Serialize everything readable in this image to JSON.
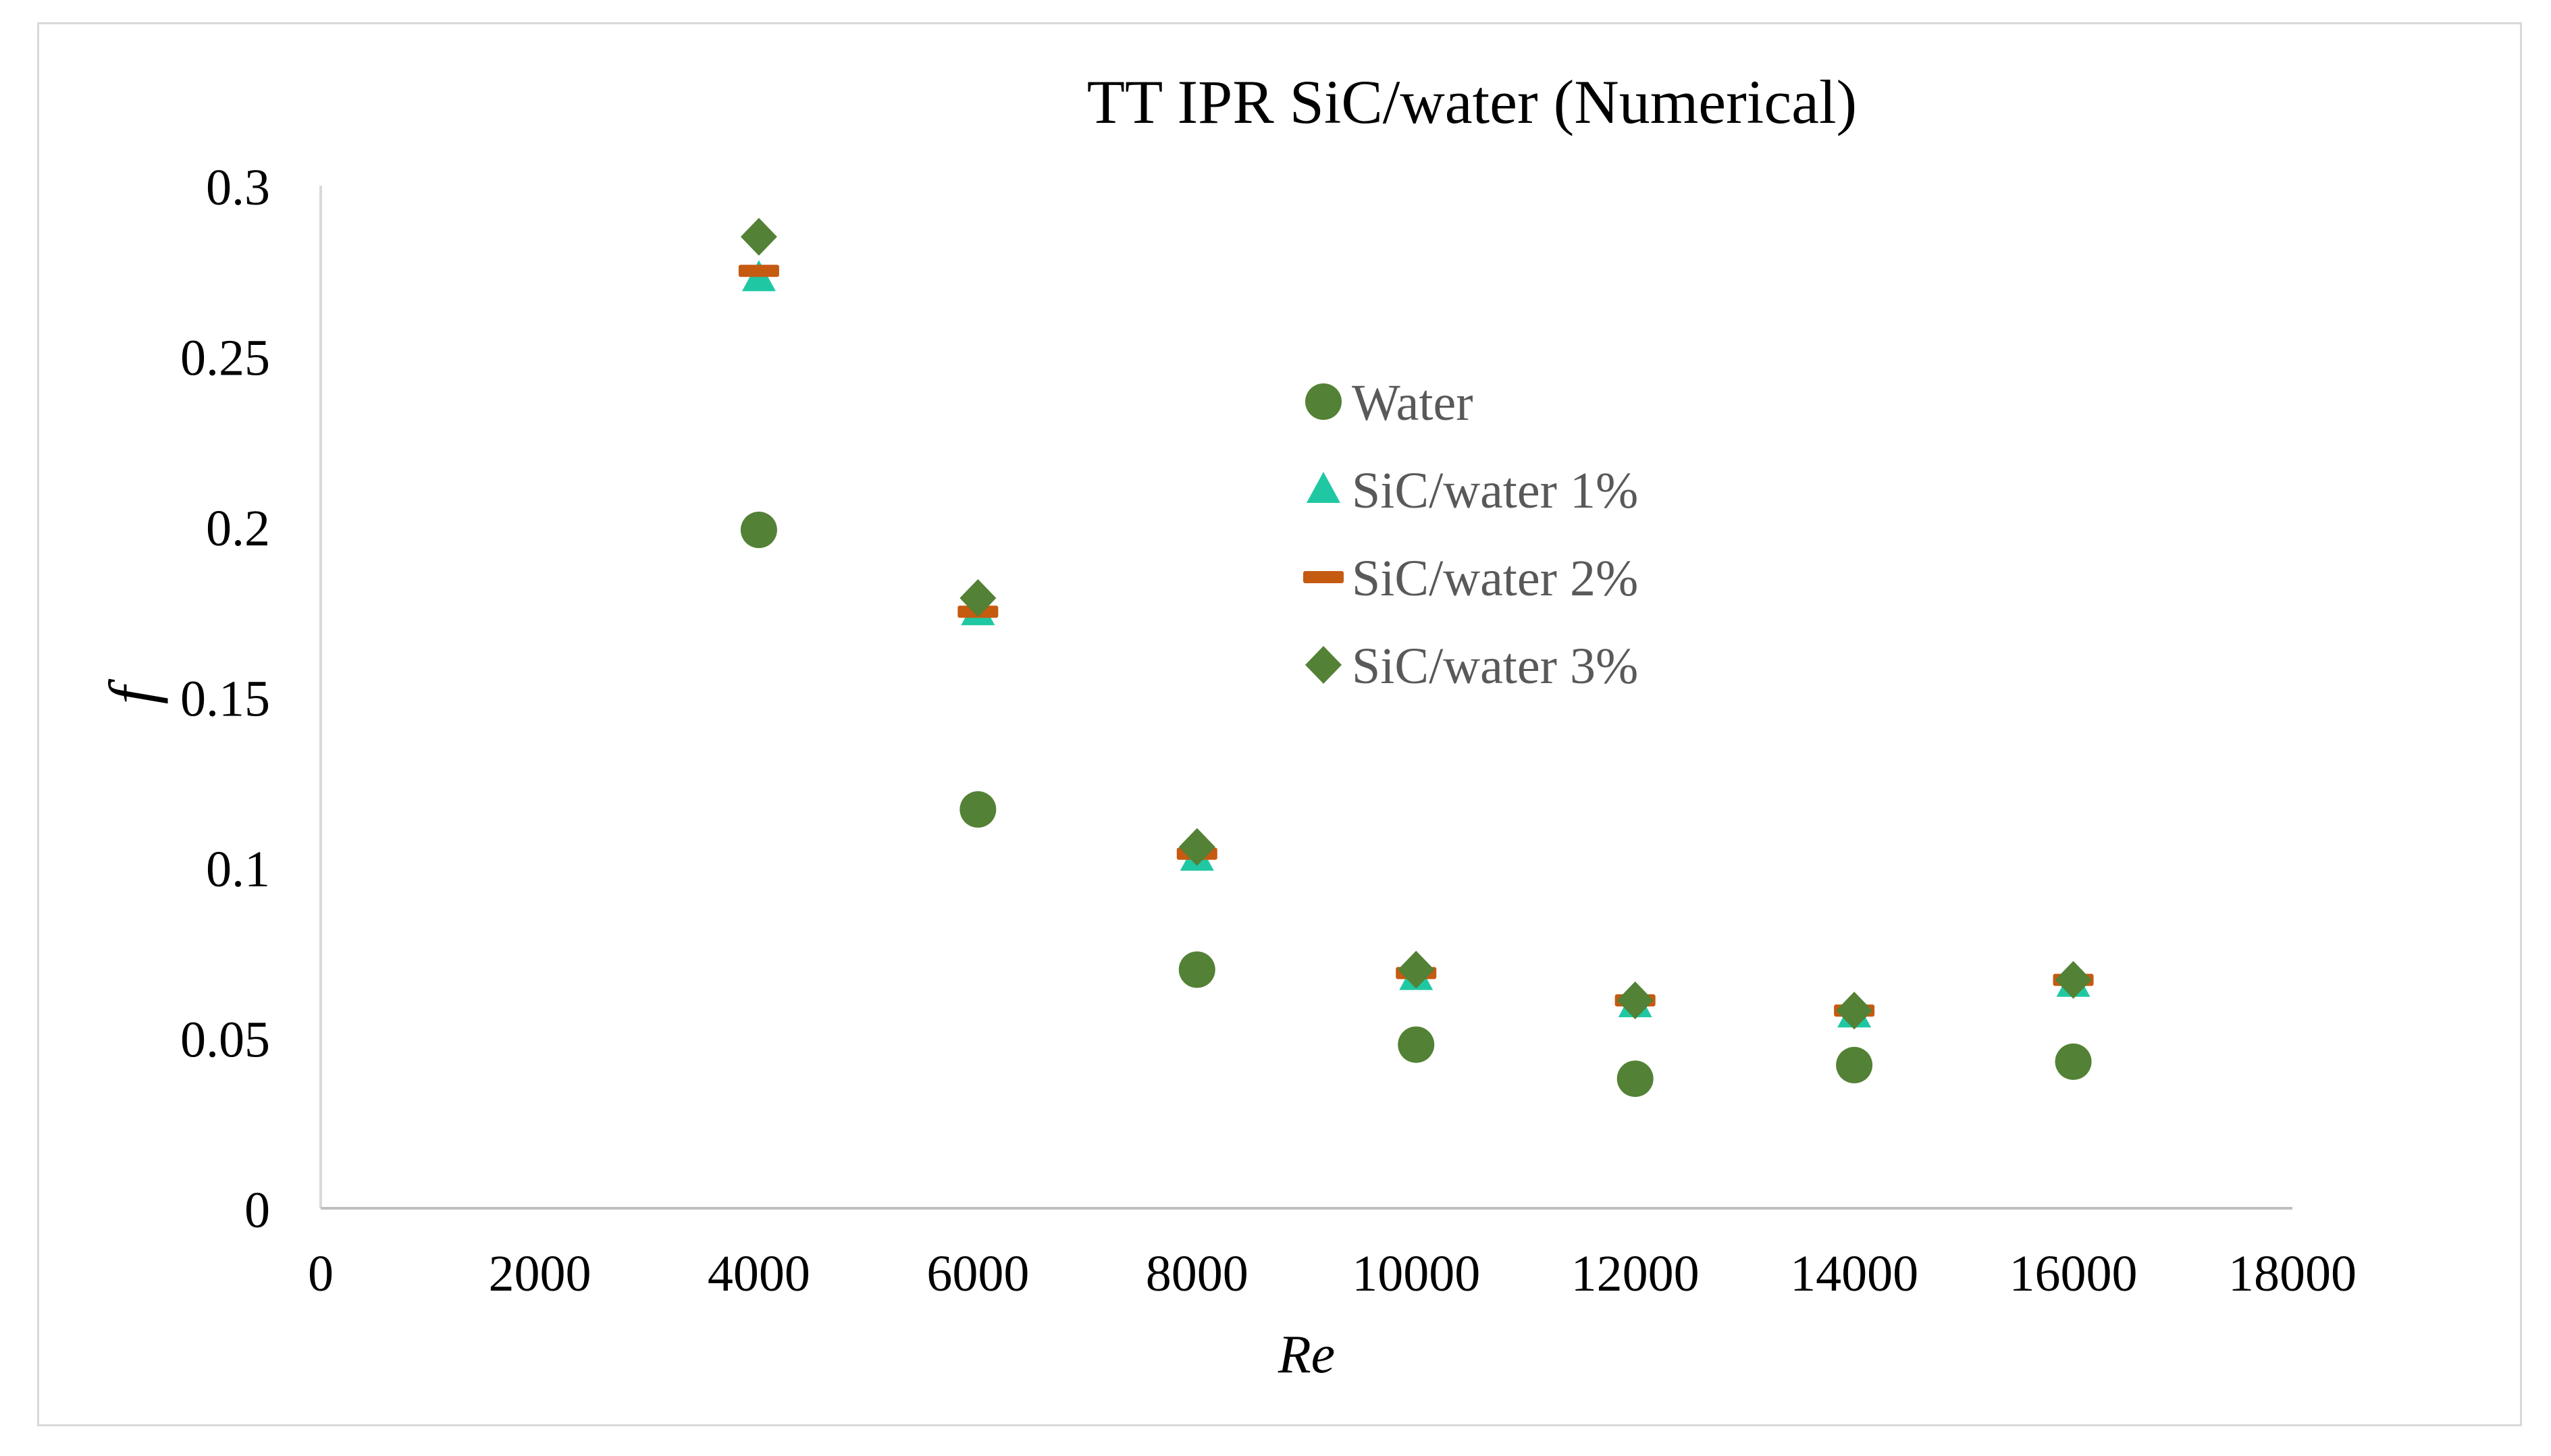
{
  "chart_data": {
    "type": "scatter",
    "title": "TT IPR SiC/water (Numerical)",
    "xlabel": "Re",
    "ylabel": "f",
    "xlim": [
      0,
      18000
    ],
    "ylim": [
      0,
      0.3
    ],
    "x_ticks": [
      "0",
      "2000",
      "4000",
      "6000",
      "8000",
      "10000",
      "12000",
      "14000",
      "16000",
      "18000"
    ],
    "y_ticks": [
      "0",
      "0.05",
      "0.1",
      "0.15",
      "0.2",
      "0.25",
      "0.3"
    ],
    "grid": false,
    "legend_position": "center-right",
    "x": [
      4000,
      6000,
      8000,
      10000,
      12000,
      14000,
      16000
    ],
    "series": [
      {
        "name": "Water",
        "marker": "circle",
        "color": "#538135",
        "values": [
          0.199,
          0.117,
          0.07,
          0.048,
          0.038,
          0.042,
          0.043
        ]
      },
      {
        "name": "SiC/water 1%",
        "marker": "triangle",
        "color": "#1fc8a3",
        "values": [
          0.273,
          0.175,
          0.103,
          0.068,
          0.06,
          0.057,
          0.066
        ]
      },
      {
        "name": "SiC/water 2%",
        "marker": "dash",
        "color": "#c55a11",
        "values": [
          0.275,
          0.175,
          0.104,
          0.069,
          0.061,
          0.058,
          0.067
        ]
      },
      {
        "name": "SiC/water 3%",
        "marker": "diamond",
        "color": "#538135",
        "values": [
          0.285,
          0.179,
          0.106,
          0.07,
          0.061,
          0.058,
          0.067
        ]
      }
    ]
  }
}
